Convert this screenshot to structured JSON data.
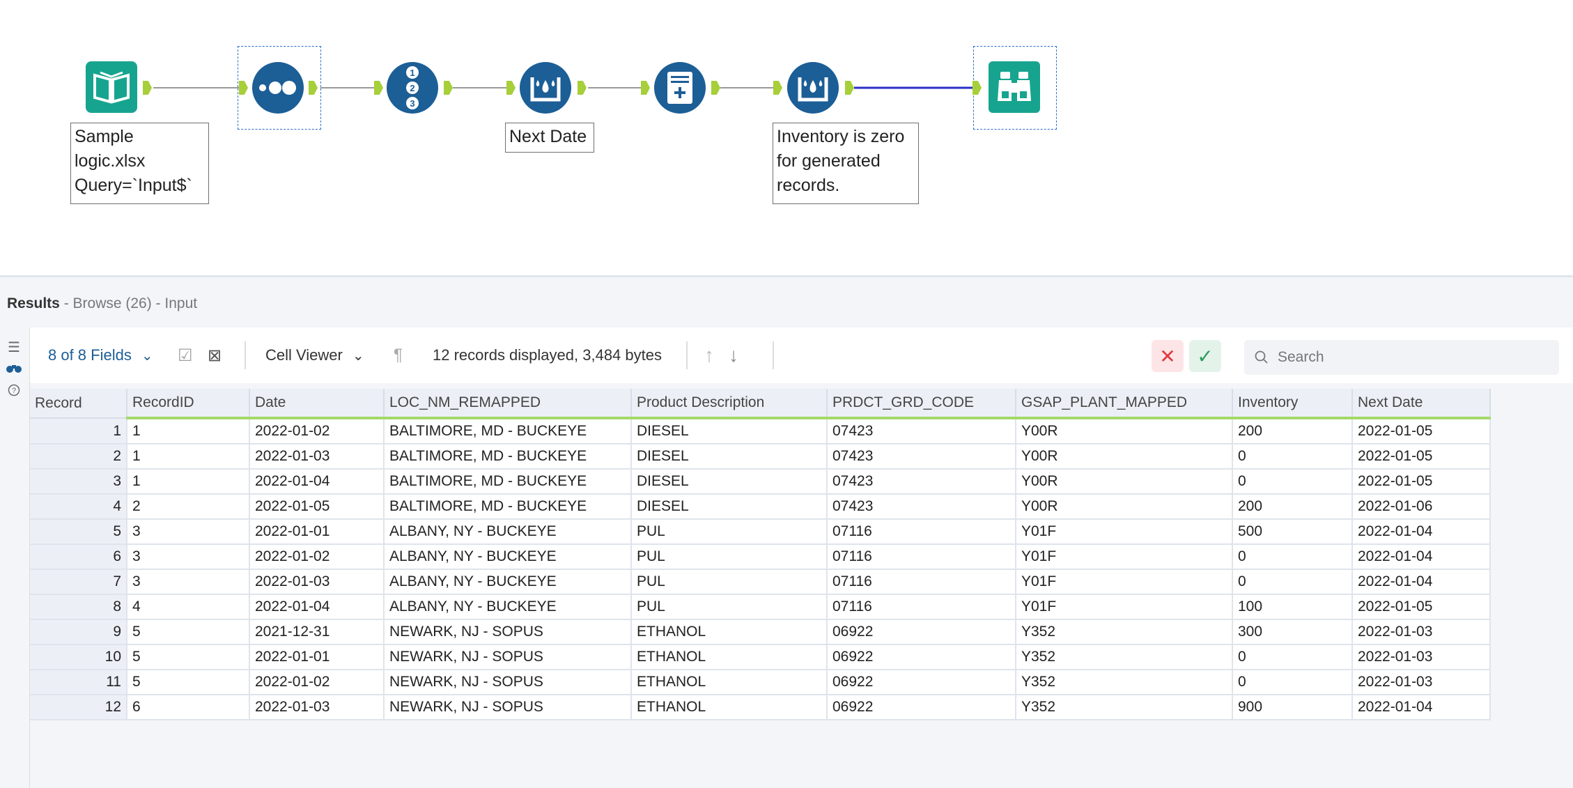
{
  "workflow": {
    "notes": {
      "input": "Sample\nlogic.xlsx\nQuery=`Input$`",
      "formula1": "Next Date",
      "formula2": "Inventory is zero\nfor generated\nrecords."
    }
  },
  "results": {
    "title": "Results",
    "subtitle": " - Browse (26) - Input",
    "fields_label": "8 of 8 Fields",
    "cell_viewer_label": "Cell Viewer",
    "records_info": "12 records displayed, 3,484 bytes",
    "search_placeholder": "Search",
    "columns": [
      "Record",
      "RecordID",
      "Date",
      "LOC_NM_REMAPPED",
      "Product Description",
      "PRDCT_GRD_CODE",
      "GSAP_PLANT_MAPPED",
      "Inventory",
      "Next Date"
    ],
    "rows": [
      [
        "1",
        "1",
        "2022-01-02",
        "BALTIMORE, MD - BUCKEYE",
        "DIESEL",
        "07423",
        "Y00R",
        "200",
        "2022-01-05"
      ],
      [
        "2",
        "1",
        "2022-01-03",
        "BALTIMORE, MD - BUCKEYE",
        "DIESEL",
        "07423",
        "Y00R",
        "0",
        "2022-01-05"
      ],
      [
        "3",
        "1",
        "2022-01-04",
        "BALTIMORE, MD - BUCKEYE",
        "DIESEL",
        "07423",
        "Y00R",
        "0",
        "2022-01-05"
      ],
      [
        "4",
        "2",
        "2022-01-05",
        "BALTIMORE, MD - BUCKEYE",
        "DIESEL",
        "07423",
        "Y00R",
        "200",
        "2022-01-06"
      ],
      [
        "5",
        "3",
        "2022-01-01",
        "ALBANY, NY - BUCKEYE",
        "PUL",
        "07116",
        "Y01F",
        "500",
        "2022-01-04"
      ],
      [
        "6",
        "3",
        "2022-01-02",
        "ALBANY, NY - BUCKEYE",
        "PUL",
        "07116",
        "Y01F",
        "0",
        "2022-01-04"
      ],
      [
        "7",
        "3",
        "2022-01-03",
        "ALBANY, NY - BUCKEYE",
        "PUL",
        "07116",
        "Y01F",
        "0",
        "2022-01-04"
      ],
      [
        "8",
        "4",
        "2022-01-04",
        "ALBANY, NY - BUCKEYE",
        "PUL",
        "07116",
        "Y01F",
        "100",
        "2022-01-05"
      ],
      [
        "9",
        "5",
        "2021-12-31",
        "NEWARK, NJ - SOPUS",
        "ETHANOL",
        "06922",
        "Y352",
        "300",
        "2022-01-03"
      ],
      [
        "10",
        "5",
        "2022-01-01",
        "NEWARK, NJ - SOPUS",
        "ETHANOL",
        "06922",
        "Y352",
        "0",
        "2022-01-03"
      ],
      [
        "11",
        "5",
        "2022-01-02",
        "NEWARK, NJ - SOPUS",
        "ETHANOL",
        "06922",
        "Y352",
        "0",
        "2022-01-03"
      ],
      [
        "12",
        "6",
        "2022-01-03",
        "NEWARK, NJ - SOPUS",
        "ETHANOL",
        "06922",
        "Y352",
        "900",
        "2022-01-04"
      ]
    ]
  },
  "colors": {
    "tool_blue": "#1c5e96",
    "tool_teal": "#17a48f",
    "anchor_green": "#a6cf3a",
    "header_underline": "#a4d86a",
    "wire_active": "#2b2fc7"
  }
}
